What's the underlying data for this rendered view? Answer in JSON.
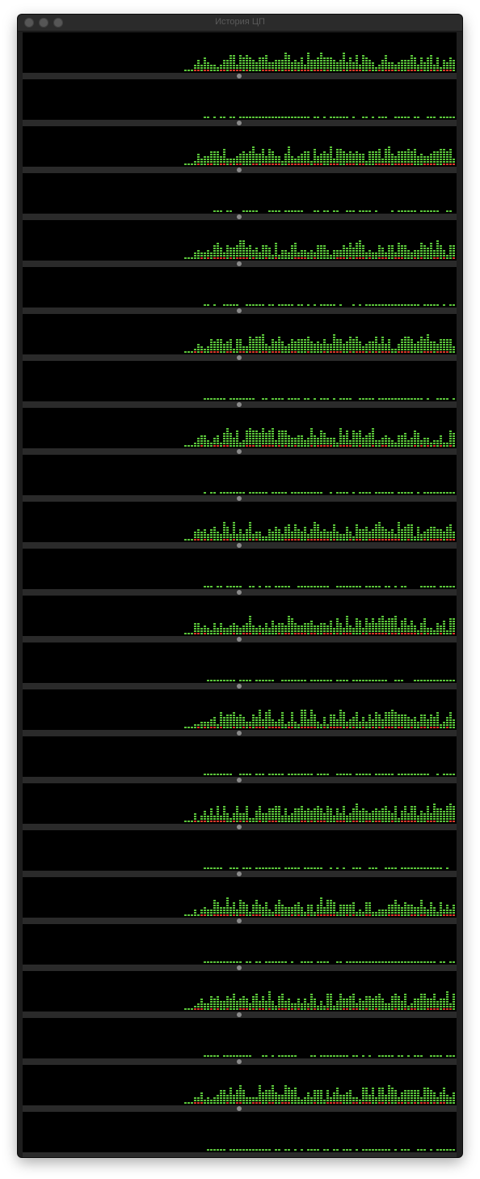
{
  "window": {
    "title": "История ЦП",
    "buttons": [
      "close",
      "minimize",
      "zoom"
    ]
  },
  "colors": {
    "user_load": "#5ac43a",
    "system_load": "#d93a2a",
    "background": "#000000",
    "divider": "#2a2a2a"
  },
  "cores": [
    {
      "seed": 11,
      "pattern": "even"
    },
    {
      "seed": 12,
      "pattern": "odd"
    },
    {
      "seed": 21,
      "pattern": "even"
    },
    {
      "seed": 22,
      "pattern": "odd"
    },
    {
      "seed": 31,
      "pattern": "even"
    },
    {
      "seed": 32,
      "pattern": "odd"
    },
    {
      "seed": 41,
      "pattern": "even"
    },
    {
      "seed": 42,
      "pattern": "odd"
    },
    {
      "seed": 51,
      "pattern": "even"
    },
    {
      "seed": 52,
      "pattern": "odd"
    },
    {
      "seed": 61,
      "pattern": "even"
    },
    {
      "seed": 62,
      "pattern": "odd"
    },
    {
      "seed": 71,
      "pattern": "even"
    },
    {
      "seed": 72,
      "pattern": "odd"
    },
    {
      "seed": 81,
      "pattern": "even"
    },
    {
      "seed": 82,
      "pattern": "odd"
    },
    {
      "seed": 91,
      "pattern": "even"
    },
    {
      "seed": 92,
      "pattern": "odd"
    },
    {
      "seed": 101,
      "pattern": "even"
    },
    {
      "seed": 102,
      "pattern": "odd"
    },
    {
      "seed": 111,
      "pattern": "even"
    },
    {
      "seed": 112,
      "pattern": "odd"
    },
    {
      "seed": 121,
      "pattern": "even"
    },
    {
      "seed": 122,
      "pattern": "odd"
    }
  ]
}
